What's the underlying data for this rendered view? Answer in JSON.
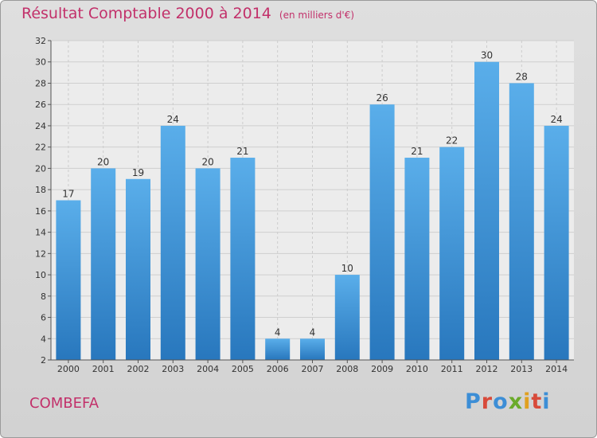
{
  "chart_data": {
    "type": "bar",
    "title": "Résultat Comptable 2000 à 2014",
    "subtitle": "(en milliers d'€)",
    "categories": [
      "2000",
      "2001",
      "2002",
      "2003",
      "2004",
      "2005",
      "2006",
      "2007",
      "2008",
      "2009",
      "2010",
      "2011",
      "2012",
      "2013",
      "2014"
    ],
    "values": [
      17,
      20,
      19,
      24,
      20,
      21,
      4,
      4,
      10,
      26,
      21,
      22,
      30,
      28,
      24
    ],
    "ylim": [
      2,
      32
    ],
    "yticks": [
      2,
      4,
      6,
      8,
      10,
      12,
      14,
      16,
      18,
      20,
      22,
      24,
      26,
      28,
      30,
      32
    ],
    "grid": true,
    "bar_color": "#3d95d8"
  },
  "footer": {
    "commune": "COMBEFA",
    "logo": [
      "P",
      "r",
      "o",
      "x",
      "i",
      "t",
      "i"
    ],
    "logo_colors": [
      "#3c8ed6",
      "#d84a3a",
      "#3c8ed6",
      "#6aaa2a",
      "#e0a020",
      "#d84a3a",
      "#3c8ed6"
    ]
  }
}
